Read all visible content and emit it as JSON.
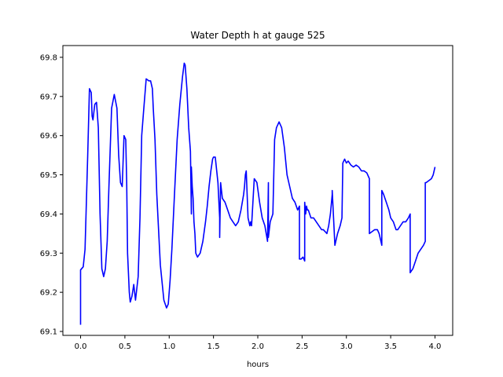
{
  "chart_data": {
    "type": "line",
    "title": "Water Depth h at gauge 525",
    "xlabel": "hours",
    "ylabel": "",
    "xlim": [
      -0.2,
      4.2
    ],
    "ylim": [
      69.09,
      69.83
    ],
    "xticks": [
      0.0,
      0.5,
      1.0,
      1.5,
      2.0,
      2.5,
      3.0,
      3.5,
      4.0
    ],
    "xtick_labels": [
      "0.0",
      "0.5",
      "1.0",
      "1.5",
      "2.0",
      "2.5",
      "3.0",
      "3.5",
      "4.0"
    ],
    "yticks": [
      69.1,
      69.2,
      69.3,
      69.4,
      69.5,
      69.6,
      69.7,
      69.8
    ],
    "ytick_labels": [
      "69.1",
      "69.2",
      "69.3",
      "69.4",
      "69.5",
      "69.6",
      "69.7",
      "69.8"
    ],
    "grid": false,
    "legend": "none",
    "series": [
      {
        "color": "#0000ff",
        "x": [
          0.0,
          0.0,
          0.03,
          0.05,
          0.08,
          0.1,
          0.12,
          0.13,
          0.14,
          0.16,
          0.18,
          0.2,
          0.22,
          0.24,
          0.26,
          0.28,
          0.3,
          0.32,
          0.35,
          0.38,
          0.41,
          0.43,
          0.45,
          0.47,
          0.49,
          0.51,
          0.52,
          0.53,
          0.55,
          0.56,
          0.58,
          0.6,
          0.62,
          0.65,
          0.67,
          0.69,
          0.71,
          0.74,
          0.77,
          0.79,
          0.81,
          0.82,
          0.83,
          0.84,
          0.86,
          0.9,
          0.94,
          0.97,
          0.99,
          1.01,
          1.03,
          1.06,
          1.09,
          1.12,
          1.15,
          1.17,
          1.18,
          1.2,
          1.22,
          1.24,
          1.25,
          1.25,
          1.26,
          1.27,
          1.28,
          1.29,
          1.3,
          1.32,
          1.35,
          1.38,
          1.41,
          1.43,
          1.45,
          1.47,
          1.49,
          1.5,
          1.52,
          1.55,
          1.57,
          1.57,
          1.58,
          1.59,
          1.6,
          1.63,
          1.66,
          1.69,
          1.72,
          1.75,
          1.78,
          1.81,
          1.84,
          1.85,
          1.86,
          1.87,
          1.89,
          1.91,
          1.92,
          1.93,
          1.96,
          1.99,
          2.02,
          2.05,
          2.08,
          2.11,
          2.12,
          2.12,
          2.14,
          2.17,
          2.19,
          2.21,
          2.24,
          2.27,
          2.3,
          2.33,
          2.36,
          2.39,
          2.42,
          2.45,
          2.47,
          2.47,
          2.49,
          2.51,
          2.53,
          2.53,
          2.54,
          2.55,
          2.56,
          2.57,
          2.6,
          2.63,
          2.66,
          2.69,
          2.72,
          2.74,
          2.76,
          2.78,
          2.8,
          2.82,
          2.84,
          2.84,
          2.87,
          2.9,
          2.93,
          2.95,
          2.96,
          2.98,
          3.0,
          3.02,
          3.05,
          3.08,
          3.11,
          3.14,
          3.17,
          3.2,
          3.23,
          3.26,
          3.26,
          3.29,
          3.32,
          3.35,
          3.37,
          3.39,
          3.4,
          3.4,
          3.42,
          3.45,
          3.48,
          3.5,
          3.53,
          3.56,
          3.58,
          3.61,
          3.64,
          3.67,
          3.7,
          3.72,
          3.72,
          3.75,
          3.78,
          3.81,
          3.84,
          3.87,
          3.89,
          3.89,
          3.9,
          3.93,
          3.96,
          3.98,
          4.0
        ],
        "y": [
          69.117,
          69.257,
          69.265,
          69.31,
          69.55,
          69.72,
          69.71,
          69.65,
          69.64,
          69.68,
          69.685,
          69.62,
          69.4,
          69.26,
          69.24,
          69.26,
          69.33,
          69.47,
          69.67,
          69.705,
          69.67,
          69.55,
          69.48,
          69.47,
          69.6,
          69.59,
          69.48,
          69.3,
          69.2,
          69.175,
          69.19,
          69.22,
          69.18,
          69.24,
          69.39,
          69.6,
          69.66,
          69.745,
          69.74,
          69.74,
          69.72,
          69.67,
          69.63,
          69.59,
          69.45,
          69.27,
          69.18,
          69.16,
          69.17,
          69.23,
          69.31,
          69.45,
          69.59,
          69.68,
          69.75,
          69.785,
          69.78,
          69.72,
          69.62,
          69.56,
          69.4,
          69.52,
          69.47,
          69.44,
          69.38,
          69.35,
          69.3,
          69.29,
          69.3,
          69.33,
          69.38,
          69.42,
          69.47,
          69.51,
          69.54,
          69.545,
          69.545,
          69.48,
          69.39,
          69.34,
          69.48,
          69.46,
          69.44,
          69.43,
          69.41,
          69.39,
          69.38,
          69.37,
          69.38,
          69.41,
          69.45,
          69.47,
          69.5,
          69.51,
          69.39,
          69.37,
          69.38,
          69.37,
          69.49,
          69.48,
          69.43,
          69.39,
          69.37,
          69.33,
          69.48,
          69.34,
          69.38,
          69.4,
          69.59,
          69.62,
          69.635,
          69.62,
          69.57,
          69.5,
          69.47,
          69.44,
          69.43,
          69.41,
          69.42,
          69.285,
          69.285,
          69.29,
          69.28,
          69.43,
          69.4,
          69.42,
          69.41,
          69.41,
          69.39,
          69.39,
          69.38,
          69.37,
          69.36,
          69.36,
          69.355,
          69.35,
          69.37,
          69.4,
          69.45,
          69.46,
          69.32,
          69.35,
          69.37,
          69.39,
          69.53,
          69.54,
          69.53,
          69.535,
          69.525,
          69.52,
          69.525,
          69.52,
          69.51,
          69.51,
          69.505,
          69.49,
          69.35,
          69.355,
          69.36,
          69.36,
          69.35,
          69.33,
          69.32,
          69.46,
          69.45,
          69.43,
          69.41,
          69.39,
          69.38,
          69.36,
          69.36,
          69.37,
          69.38,
          69.38,
          69.39,
          69.4,
          69.25,
          69.26,
          69.28,
          69.3,
          69.31,
          69.32,
          69.33,
          69.48,
          69.48,
          69.485,
          69.49,
          69.5,
          69.52
        ]
      }
    ]
  }
}
